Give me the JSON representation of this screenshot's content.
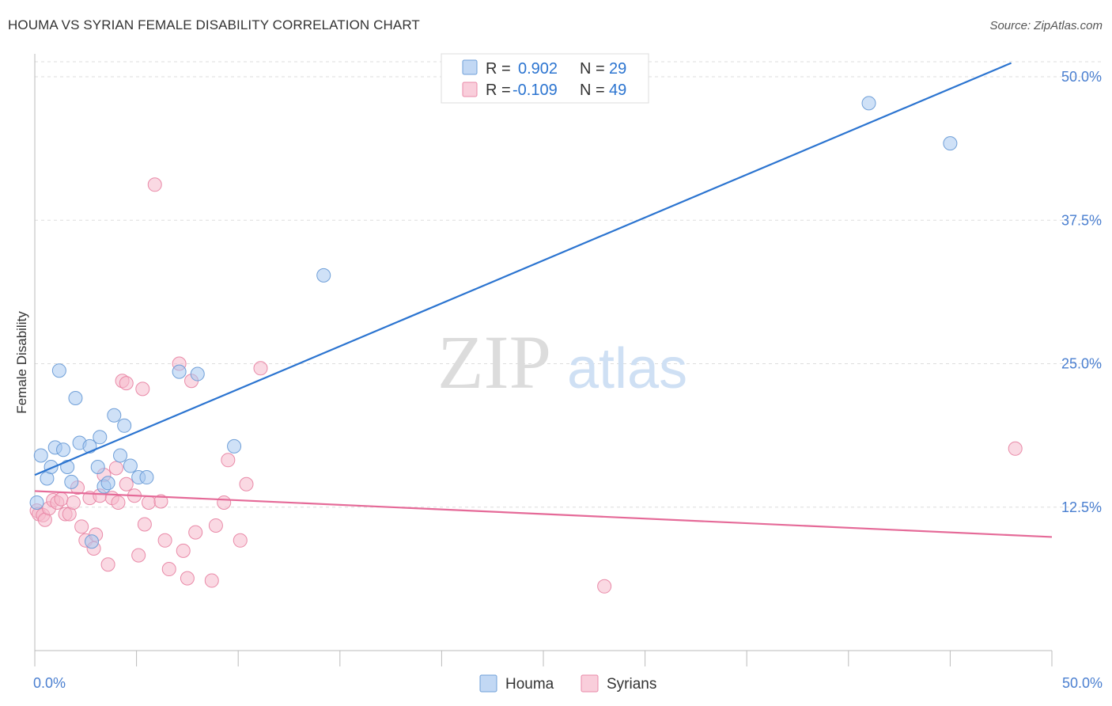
{
  "title": "HOUMA VS SYRIAN FEMALE DISABILITY CORRELATION CHART",
  "source": "Source: ZipAtlas.com",
  "watermark": {
    "zip": "ZIP",
    "atlas": "atlas"
  },
  "colors": {
    "houma_fill": "#a8c8f0",
    "houma_stroke": "#6f9fd8",
    "houma_line": "#2b74d0",
    "syrians_fill": "#f6b9cc",
    "syrians_stroke": "#e98aa8",
    "syrians_line": "#e56a98",
    "tick_label": "#4a7fd0",
    "grid": "#dddddd"
  },
  "chart_data": {
    "type": "scatter",
    "title": "HOUMA VS SYRIAN FEMALE DISABILITY CORRELATION CHART",
    "xlabel": "",
    "ylabel": "Female Disability",
    "xlim": [
      0,
      50
    ],
    "ylim": [
      0,
      52
    ],
    "x_tick_labels": [
      {
        "value": 0,
        "label": "0.0%"
      },
      {
        "value": 50,
        "label": "50.0%"
      }
    ],
    "x_minor_ticks": [
      0,
      5,
      10,
      15,
      20,
      25,
      30,
      35,
      40,
      45,
      50
    ],
    "y_ticks": [
      {
        "value": 12.5,
        "label": "12.5%"
      },
      {
        "value": 25.0,
        "label": "25.0%"
      },
      {
        "value": 37.5,
        "label": "37.5%"
      },
      {
        "value": 50.0,
        "label": "50.0%"
      }
    ],
    "legend": {
      "position": "top-center",
      "rows": [
        {
          "series": "Houma",
          "r_label": "R =",
          "r_value": "0.902",
          "n_label": "N =",
          "n_value": "29"
        },
        {
          "series": "Syrians",
          "r_label": "R =",
          "r_value": "-0.109",
          "n_label": "N =",
          "n_value": "49"
        }
      ]
    },
    "bottom_legend": [
      "Houma",
      "Syrians"
    ],
    "series": [
      {
        "name": "Houma",
        "trendline": {
          "x": [
            0,
            48
          ],
          "y": [
            15.3,
            51.2
          ]
        },
        "points": [
          [
            0.1,
            12.9
          ],
          [
            0.3,
            17.0
          ],
          [
            0.6,
            15.0
          ],
          [
            0.8,
            16.0
          ],
          [
            1.0,
            17.7
          ],
          [
            1.2,
            24.4
          ],
          [
            1.4,
            17.5
          ],
          [
            1.6,
            16.0
          ],
          [
            1.8,
            14.7
          ],
          [
            2.0,
            22.0
          ],
          [
            2.2,
            18.1
          ],
          [
            2.7,
            17.8
          ],
          [
            2.8,
            9.5
          ],
          [
            3.1,
            16.0
          ],
          [
            3.2,
            18.6
          ],
          [
            3.4,
            14.3
          ],
          [
            3.6,
            14.6
          ],
          [
            3.9,
            20.5
          ],
          [
            4.2,
            17.0
          ],
          [
            4.4,
            19.6
          ],
          [
            4.7,
            16.1
          ],
          [
            5.1,
            15.1
          ],
          [
            5.5,
            15.1
          ],
          [
            7.1,
            24.3
          ],
          [
            8.0,
            24.1
          ],
          [
            9.8,
            17.8
          ],
          [
            14.2,
            32.7
          ],
          [
            41.0,
            47.7
          ],
          [
            45.0,
            44.2
          ]
        ]
      },
      {
        "name": "Syrians",
        "trendline": {
          "x": [
            0,
            50
          ],
          "y": [
            13.9,
            9.9
          ]
        },
        "points": [
          [
            0.1,
            12.2
          ],
          [
            0.2,
            11.9
          ],
          [
            0.4,
            11.8
          ],
          [
            0.5,
            11.4
          ],
          [
            0.7,
            12.4
          ],
          [
            0.9,
            13.1
          ],
          [
            1.1,
            12.9
          ],
          [
            1.3,
            13.2
          ],
          [
            1.5,
            11.9
          ],
          [
            1.7,
            11.9
          ],
          [
            1.9,
            12.9
          ],
          [
            2.1,
            14.2
          ],
          [
            2.3,
            10.8
          ],
          [
            2.5,
            9.6
          ],
          [
            2.7,
            13.3
          ],
          [
            2.9,
            8.9
          ],
          [
            3.0,
            10.1
          ],
          [
            3.2,
            13.5
          ],
          [
            3.4,
            15.3
          ],
          [
            3.6,
            7.5
          ],
          [
            3.8,
            13.3
          ],
          [
            4.0,
            15.9
          ],
          [
            4.1,
            12.9
          ],
          [
            4.3,
            23.5
          ],
          [
            4.5,
            14.5
          ],
          [
            4.5,
            23.3
          ],
          [
            4.9,
            13.5
          ],
          [
            5.1,
            8.3
          ],
          [
            5.3,
            22.8
          ],
          [
            5.4,
            11.0
          ],
          [
            5.6,
            12.9
          ],
          [
            5.9,
            40.6
          ],
          [
            6.2,
            13.0
          ],
          [
            6.4,
            9.6
          ],
          [
            6.6,
            7.1
          ],
          [
            7.1,
            25.0
          ],
          [
            7.3,
            8.7
          ],
          [
            7.5,
            6.3
          ],
          [
            7.7,
            23.5
          ],
          [
            7.9,
            10.3
          ],
          [
            8.7,
            6.1
          ],
          [
            8.9,
            10.9
          ],
          [
            9.3,
            12.9
          ],
          [
            9.5,
            16.6
          ],
          [
            10.1,
            9.6
          ],
          [
            10.4,
            14.5
          ],
          [
            11.1,
            24.6
          ],
          [
            28.0,
            5.6
          ],
          [
            48.2,
            17.6
          ]
        ]
      }
    ]
  }
}
